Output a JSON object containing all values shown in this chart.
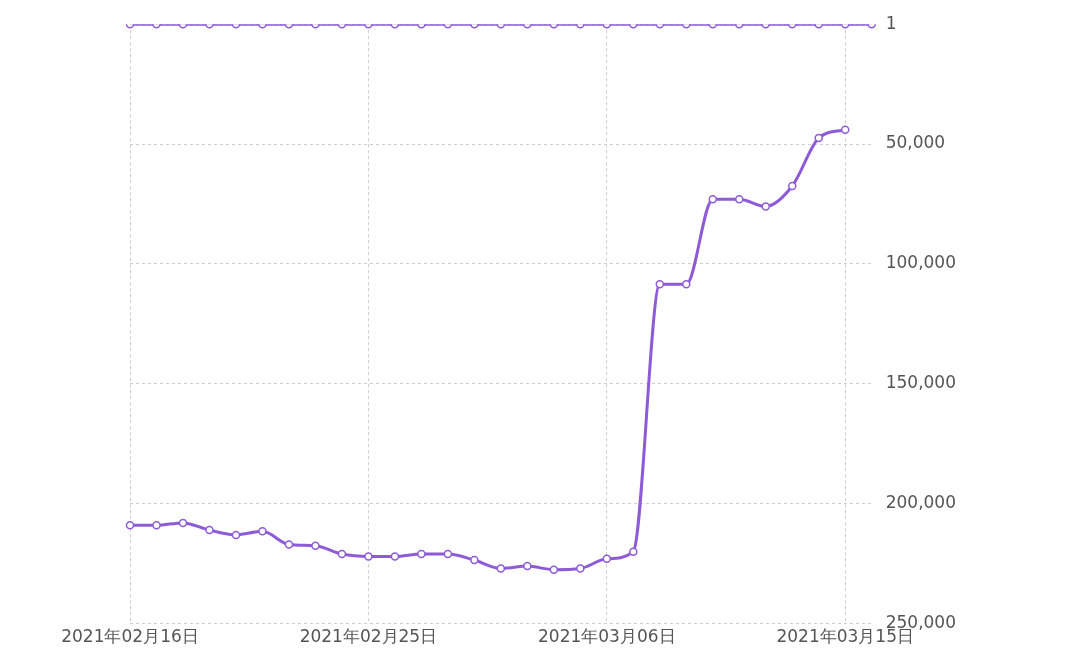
{
  "chart_data": {
    "type": "line",
    "categories": [
      "2021年02月16日",
      null,
      null,
      null,
      null,
      null,
      null,
      null,
      null,
      "2021年02月25日",
      null,
      null,
      null,
      null,
      null,
      null,
      null,
      null,
      "2021年03月06日",
      null,
      null,
      null,
      null,
      null,
      null,
      null,
      null,
      "2021年03月15日",
      null
    ],
    "series": [
      {
        "color": "#8e5bd8",
        "values": [
          1,
          1,
          1,
          1,
          1,
          1,
          1,
          1,
          1,
          1,
          1,
          1,
          1,
          1,
          1,
          1,
          1,
          1,
          1,
          1,
          1,
          1,
          1,
          1,
          1,
          1,
          1,
          1,
          1
        ]
      },
      {
        "color": "#8e5bd8",
        "values": [
          209000,
          209000,
          208000,
          211000,
          213000,
          211500,
          217000,
          217500,
          221000,
          222000,
          222000,
          221000,
          221000,
          223500,
          227000,
          226000,
          227500,
          227000,
          223000,
          220000,
          108500,
          108500,
          73000,
          73000,
          76000,
          67500,
          47500,
          44000,
          null
        ]
      }
    ],
    "ylim": [
      250000,
      1
    ],
    "yticks": [
      {
        "value": 1,
        "label": "1"
      },
      {
        "value": 50000,
        "label": "50,000"
      },
      {
        "value": 100000,
        "label": "100,000"
      },
      {
        "value": 150000,
        "label": "150,000"
      },
      {
        "value": 200000,
        "label": "200,000"
      },
      {
        "value": 250000,
        "label": "250,000"
      }
    ],
    "grid": true,
    "marker": "circle",
    "legend": false
  }
}
